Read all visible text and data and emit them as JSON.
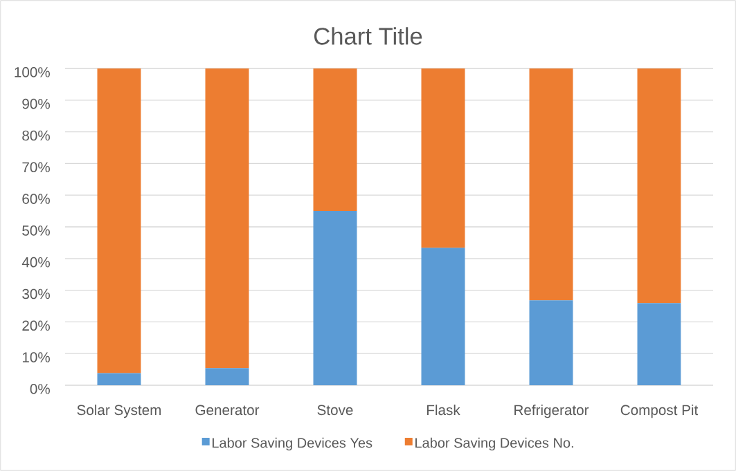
{
  "chart_data": {
    "type": "bar",
    "title": "Chart Title",
    "stacked": true,
    "categories": [
      "Solar System",
      "Generator",
      "Stove",
      "Flask",
      "Refrigerator",
      "Compost Pit"
    ],
    "series": [
      {
        "name": "Labor Saving Devices  Yes",
        "color": "#5b9bd5",
        "values": [
          3.8,
          5.4,
          55,
          43.4,
          26.8,
          25.9
        ]
      },
      {
        "name": "Labor Saving Devices  No.",
        "color": "#ed7d31",
        "values": [
          96.2,
          94.6,
          45,
          56.6,
          73.2,
          74.1
        ]
      }
    ],
    "ylim": [
      0,
      100
    ],
    "yticks": [
      {
        "value": 0,
        "label": "0%"
      },
      {
        "value": 10,
        "label": "10%"
      },
      {
        "value": 20,
        "label": "20%"
      },
      {
        "value": 30,
        "label": "30%"
      },
      {
        "value": 40,
        "label": "40%"
      },
      {
        "value": 50,
        "label": "50%"
      },
      {
        "value": 60,
        "label": "60%"
      },
      {
        "value": 70,
        "label": "70%"
      },
      {
        "value": 80,
        "label": "80%"
      },
      {
        "value": 90,
        "label": "90%"
      },
      {
        "value": 100,
        "label": "100%"
      }
    ],
    "grid": "y",
    "legend": "bottom"
  }
}
